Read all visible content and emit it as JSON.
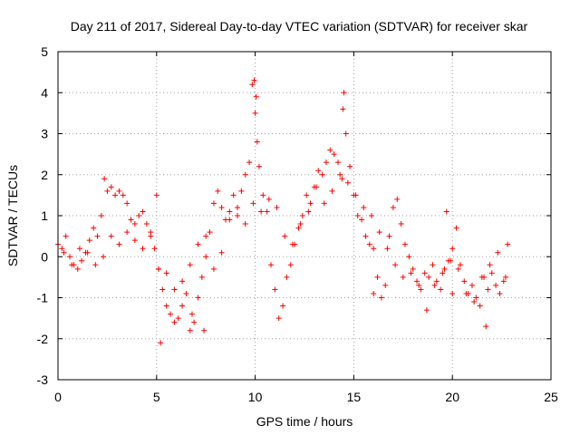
{
  "chart_data": {
    "type": "scatter",
    "title": "Day 211 of 2017, Sidereal Day-to-day VTEC variation (SDTVAR) for receiver skar",
    "xlabel": "GPS time / hours",
    "ylabel": "SDTVAR / TECUs",
    "xlim": [
      0,
      25
    ],
    "ylim": [
      -3,
      5
    ],
    "x_ticks": [
      "0",
      "5",
      "10",
      "15",
      "20",
      "25"
    ],
    "y_ticks": [
      "-3",
      "-2",
      "-1",
      "0",
      "1",
      "2",
      "3",
      "4",
      "5"
    ],
    "grid": true,
    "marker": "+",
    "color": "#ff0000",
    "series": [
      {
        "name": "SDTVAR",
        "x": [
          0.0,
          0.2,
          0.4,
          0.6,
          0.8,
          1.0,
          1.2,
          1.4,
          1.6,
          1.8,
          2.0,
          2.2,
          2.35,
          2.5,
          2.7,
          2.9,
          3.1,
          3.3,
          3.5,
          3.7,
          3.9,
          4.1,
          4.3,
          4.5,
          4.7,
          4.9,
          5.1,
          5.3,
          5.5,
          5.7,
          5.9,
          6.1,
          6.3,
          6.5,
          6.7,
          6.9,
          7.1,
          7.3,
          7.5,
          7.7,
          7.9,
          8.1,
          8.3,
          8.5,
          8.7,
          8.9,
          9.1,
          9.3,
          9.5,
          9.7,
          9.85,
          10.0,
          10.1,
          10.2,
          10.4,
          10.6,
          10.8,
          11.0,
          11.2,
          11.4,
          11.6,
          11.8,
          12.0,
          12.2,
          12.4,
          12.6,
          12.8,
          13.0,
          13.2,
          13.4,
          13.6,
          13.8,
          14.0,
          14.2,
          14.4,
          14.5,
          14.6,
          14.8,
          15.0,
          15.2,
          15.4,
          15.6,
          15.8,
          16.0,
          16.2,
          16.4,
          16.6,
          16.8,
          17.0,
          17.2,
          17.4,
          17.6,
          17.8,
          18.0,
          18.2,
          18.4,
          18.6,
          18.8,
          19.0,
          19.2,
          19.4,
          19.6,
          19.8,
          20.0,
          20.2,
          20.4,
          20.6,
          20.8,
          21.0,
          21.2,
          21.4,
          21.6,
          21.8,
          22.0,
          22.2,
          22.4,
          22.6,
          22.8,
          0.3,
          0.7,
          1.1,
          1.5,
          1.9,
          2.3,
          2.7,
          3.1,
          3.5,
          3.9,
          4.3,
          4.7,
          5.1,
          5.5,
          5.9,
          6.3,
          6.7,
          7.1,
          7.5,
          7.9,
          8.3,
          8.7,
          9.1,
          9.5,
          9.9,
          10.3,
          10.7,
          11.1,
          11.5,
          11.9,
          12.3,
          12.7,
          13.1,
          13.5,
          13.9,
          14.3,
          14.7,
          15.1,
          15.5,
          15.9,
          16.3,
          16.7,
          17.1,
          17.5,
          17.9,
          18.3,
          18.7,
          19.1,
          19.5,
          19.9,
          20.3,
          20.7,
          21.1,
          21.5,
          21.9,
          22.3,
          22.7,
          5.0,
          5.2,
          6.8,
          7.4,
          9.95,
          10.05,
          14.45,
          16.0,
          19.7,
          20.0,
          21.7
        ],
        "y": [
          0.3,
          0.2,
          0.5,
          0.0,
          -0.2,
          -0.3,
          -0.1,
          0.1,
          0.4,
          0.7,
          0.5,
          1.0,
          1.9,
          1.6,
          1.7,
          1.5,
          1.6,
          1.5,
          1.3,
          0.9,
          0.8,
          1.0,
          1.1,
          0.8,
          0.6,
          0.2,
          -0.3,
          -0.8,
          -1.2,
          -1.4,
          -1.6,
          -1.5,
          -1.2,
          -0.9,
          -1.8,
          -1.6,
          -1.0,
          -0.5,
          0.0,
          0.6,
          1.3,
          1.6,
          1.2,
          0.9,
          1.1,
          1.5,
          1.2,
          1.6,
          2.0,
          2.3,
          4.2,
          3.5,
          2.8,
          2.2,
          1.5,
          1.1,
          -0.2,
          -0.8,
          -1.5,
          -1.2,
          -0.5,
          -0.2,
          0.3,
          0.7,
          1.0,
          1.5,
          1.3,
          1.7,
          2.1,
          2.0,
          2.3,
          2.6,
          2.5,
          2.3,
          1.9,
          4.0,
          3.0,
          2.2,
          1.5,
          1.0,
          0.9,
          0.5,
          0.3,
          0.2,
          -0.5,
          -1.0,
          -0.7,
          0.5,
          1.2,
          1.4,
          0.8,
          0.3,
          0.0,
          -0.3,
          -0.6,
          -0.8,
          -0.4,
          -0.5,
          -0.2,
          -0.6,
          -0.8,
          -0.3,
          -0.1,
          0.2,
          0.7,
          -0.2,
          -0.6,
          -0.9,
          -0.7,
          -1.0,
          -1.2,
          -0.5,
          -0.8,
          -0.4,
          -0.7,
          -0.9,
          -0.6,
          0.3,
          0.1,
          -0.2,
          0.2,
          0.1,
          -0.2,
          0.0,
          0.5,
          0.3,
          0.6,
          0.4,
          0.2,
          0.5,
          -0.3,
          -0.4,
          -0.8,
          -0.6,
          -0.2,
          0.3,
          0.5,
          -0.3,
          0.1,
          0.9,
          1.0,
          0.8,
          1.3,
          1.1,
          1.4,
          1.2,
          0.5,
          0.3,
          0.8,
          1.1,
          1.7,
          1.3,
          1.6,
          2.0,
          1.8,
          1.5,
          1.2,
          1.0,
          0.6,
          0.2,
          -0.2,
          -0.5,
          -0.4,
          -0.7,
          -1.3,
          -0.7,
          -0.4,
          -0.1,
          -0.3,
          -0.9,
          -1.1,
          -0.5,
          -0.2,
          0.1,
          -0.5,
          1.5,
          -2.1,
          -1.4,
          -1.8,
          4.3,
          3.9,
          3.6,
          -0.9,
          1.1,
          -0.9,
          -1.7
        ]
      }
    ]
  }
}
